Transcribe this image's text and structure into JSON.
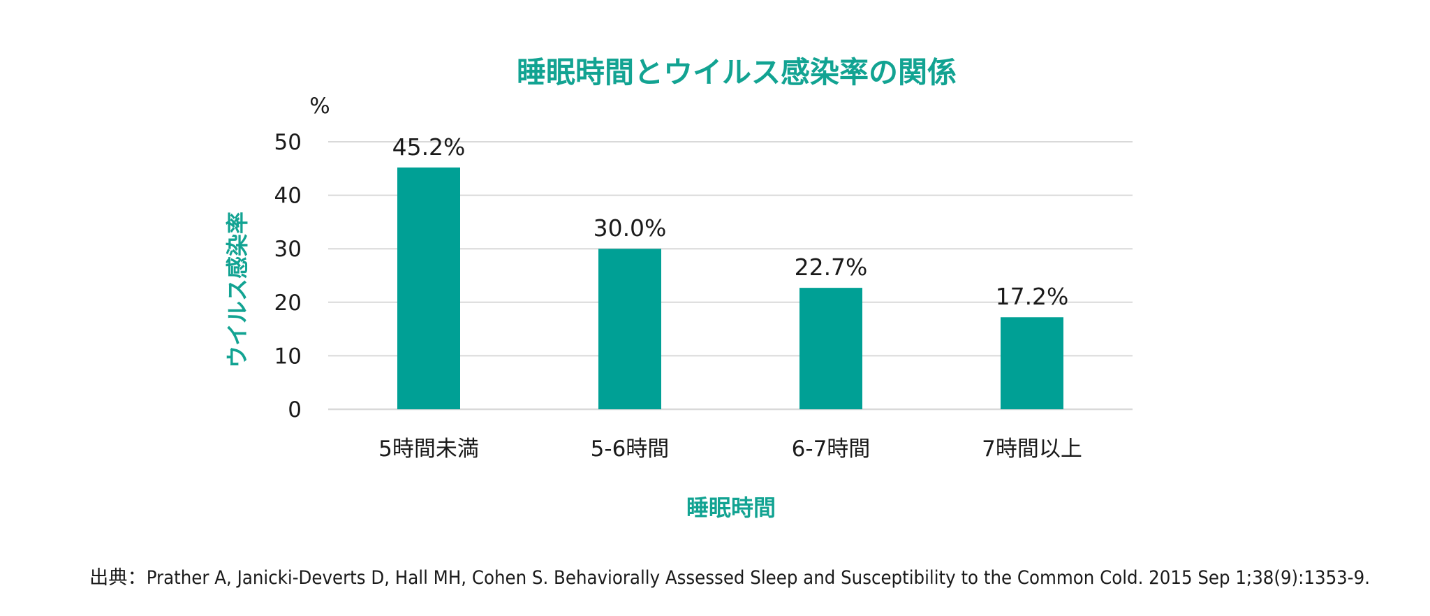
{
  "chart_data": {
    "type": "bar",
    "title": "睡眠時間とウイルス感染率の関係",
    "xlabel": "睡眠時間",
    "ylabel": "ウイルス感染率",
    "y_unit": "%",
    "categories": [
      "5時間未満",
      "5-6時間",
      "6-7時間",
      "7時間以上"
    ],
    "values": [
      45.2,
      30.0,
      22.7,
      17.2
    ],
    "data_labels": [
      "45.2%",
      "30.0%",
      "22.7%",
      "17.2%"
    ],
    "ylim": [
      0,
      50
    ],
    "yticks": [
      0,
      10,
      20,
      30,
      40,
      50
    ],
    "grid": true,
    "legend": "none"
  },
  "source": "出典：Prather A, Janicki-Deverts D, Hall MH, Cohen S. Behaviorally Assessed Sleep and Susceptibility to the Common Cold. 2015 Sep 1;38(9):1353-9.",
  "colors": {
    "bar": "#00A095",
    "accent_text": "#12A392",
    "grid": "#D9D9D9",
    "text": "#1a1a1a"
  }
}
